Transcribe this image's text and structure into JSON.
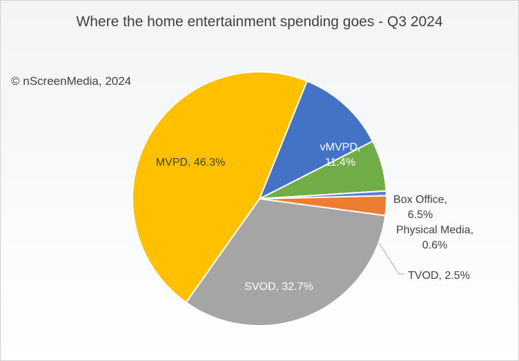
{
  "chart_data": {
    "type": "pie",
    "title": "Where the home entertainment spending goes - Q3 2024",
    "annotation": "© nScreenMedia, 2024",
    "start_angle_deg": 22,
    "slices": [
      {
        "label_lines": [
          "vMVPD,",
          "11.4%"
        ],
        "value": 11.4,
        "color": "#4472c4",
        "text_color": "#ffffff"
      },
      {
        "label_lines": [
          "Box Office,",
          "6.5%"
        ],
        "value": 6.5,
        "color": "#70ad47",
        "text_color": "#404040"
      },
      {
        "label_lines": [
          "Physical Media,",
          "0.6%"
        ],
        "value": 0.6,
        "color": "#5b7fd6",
        "text_color": "#404040"
      },
      {
        "label_lines": [
          "TVOD, 2.5%"
        ],
        "value": 2.5,
        "color": "#ed7d31",
        "text_color": "#404040"
      },
      {
        "label_lines": [
          "SVOD, 32.7%"
        ],
        "value": 32.7,
        "color": "#a5a5a5",
        "text_color": "#ffffff"
      },
      {
        "label_lines": [
          "MVPD, 46.3%"
        ],
        "value": 46.3,
        "color": "#ffc000",
        "text_color": "#404040"
      }
    ]
  }
}
